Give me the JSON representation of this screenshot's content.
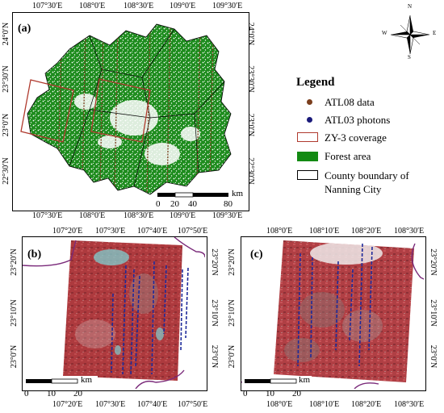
{
  "panels": {
    "a": {
      "label": "(a)",
      "top_ticks": [
        "107°30′E",
        "108°0′E",
        "108°30′E",
        "109°0′E",
        "109°30′E"
      ],
      "bottom_ticks": [
        "107°30′E",
        "108°0′E",
        "108°30′E",
        "109°0′E",
        "109°30′E"
      ],
      "left_ticks": [
        "24°0′N",
        "23°30′N",
        "23°0′N",
        "22°30′N"
      ],
      "right_ticks": [
        "24°0′N",
        "23°30′N",
        "23°0′N",
        "22°30′N"
      ],
      "scale": {
        "unit": "km",
        "labels": [
          "0",
          "20",
          "40",
          "80"
        ]
      }
    },
    "b": {
      "label": "(b)",
      "top_ticks": [
        "107°20′E",
        "107°30′E",
        "107°40′E",
        "107°50′E"
      ],
      "bottom_ticks": [
        "107°20′E",
        "107°30′E",
        "107°40′E",
        "107°50′E"
      ],
      "left_ticks": [
        "23°20′N",
        "23°10′N",
        "23°0′N"
      ],
      "right_ticks": [
        "23°20′N",
        "23°10′N",
        "23°0′N"
      ],
      "scale": {
        "unit": "km",
        "labels": [
          "0",
          "10",
          "20"
        ]
      }
    },
    "c": {
      "label": "(c)",
      "top_ticks": [
        "108°0′E",
        "108°10′E",
        "108°20′E",
        "108°30′E"
      ],
      "bottom_ticks": [
        "108°0′E",
        "108°10′E",
        "108°20′E",
        "108°30′E"
      ],
      "left_ticks": [
        "23°20′N",
        "23°10′N",
        "23°0′N"
      ],
      "right_ticks": [
        "23°20′N",
        "23°10′N",
        "23°0′N"
      ],
      "scale": {
        "unit": "km",
        "labels": [
          "0",
          "10",
          "20"
        ]
      }
    }
  },
  "compass": {
    "n": "N",
    "s": "S",
    "e": "E",
    "w": "W"
  },
  "legend": {
    "title": "Legend",
    "items": [
      {
        "label": "ATL08 data",
        "symbol": "dot",
        "color": "#7b3f1e"
      },
      {
        "label": "ATL03 photons",
        "symbol": "dot",
        "color": "#1a1a7a"
      },
      {
        "label": "ZY-3 coverage",
        "symbol": "box",
        "color": "#b03a2e"
      },
      {
        "label": "Forest area",
        "symbol": "fill",
        "color": "#138a13"
      },
      {
        "label": "County boundary of",
        "label2": "Nanning City",
        "symbol": "box",
        "color": "#000000"
      }
    ]
  },
  "colors": {
    "forest": "#1e8c1e",
    "zy3": "#b03a2e",
    "atl08": "#7b3f1e",
    "atl03": "#1a1a8a",
    "image_red": "#b0383c",
    "boundary_purple": "#7a2a7a"
  }
}
